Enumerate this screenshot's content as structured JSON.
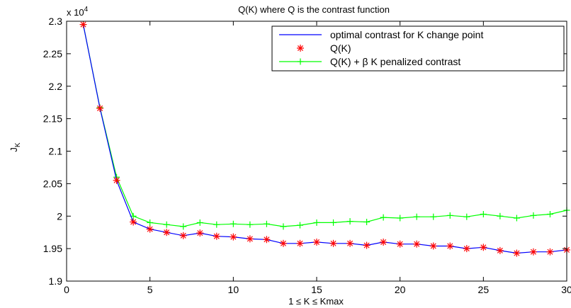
{
  "chart_data": {
    "type": "line",
    "title": "Q(K) where Q is the contrast function",
    "xlabel": "1 ≤ K ≤ Kmax",
    "ylabel": "J",
    "ylabel_sub": "K",
    "exponent_label": "x 10",
    "exponent_power": "4",
    "xlim": [
      0,
      30
    ],
    "ylim": [
      1.9,
      2.3
    ],
    "xticks": [
      "0",
      "5",
      "10",
      "15",
      "20",
      "25",
      "30"
    ],
    "yticks": [
      "1.9",
      "1.95",
      "2",
      "2.05",
      "2.1",
      "2.15",
      "2.2",
      "2.25",
      "2.3"
    ],
    "legend_position": "top-right",
    "x": [
      1,
      2,
      3,
      4,
      5,
      6,
      7,
      8,
      9,
      10,
      11,
      12,
      13,
      14,
      15,
      16,
      17,
      18,
      19,
      20,
      21,
      22,
      23,
      24,
      25,
      26,
      27,
      28,
      29,
      30
    ],
    "series": [
      {
        "name": "optimal contrast for K change point",
        "style": "line",
        "color": "#0000ff",
        "values": [
          2.295,
          2.166,
          2.055,
          1.991,
          1.98,
          1.975,
          1.97,
          1.974,
          1.969,
          1.968,
          1.965,
          1.964,
          1.958,
          1.958,
          1.96,
          1.958,
          1.958,
          1.955,
          1.96,
          1.957,
          1.957,
          1.954,
          1.954,
          1.95,
          1.952,
          1.947,
          1.943,
          1.945,
          1.945,
          1.948
        ]
      },
      {
        "name": "Q(K)",
        "style": "marker-star",
        "color": "#ff0000",
        "values": [
          2.295,
          2.166,
          2.055,
          1.991,
          1.98,
          1.975,
          1.97,
          1.974,
          1.969,
          1.968,
          1.965,
          1.964,
          1.958,
          1.958,
          1.96,
          1.958,
          1.958,
          1.955,
          1.96,
          1.957,
          1.957,
          1.954,
          1.954,
          1.95,
          1.952,
          1.947,
          1.943,
          1.945,
          1.945,
          1.948
        ]
      },
      {
        "name": "Q(K) + β K penalized contrast",
        "style": "line-plus",
        "color": "#00ff00",
        "values": [
          2.295,
          2.167,
          2.06,
          2.0,
          1.99,
          1.987,
          1.984,
          1.99,
          1.987,
          1.988,
          1.987,
          1.988,
          1.984,
          1.986,
          1.99,
          1.99,
          1.992,
          1.991,
          1.998,
          1.997,
          1.999,
          1.999,
          2.001,
          1.999,
          2.003,
          2.0,
          1.997,
          2.001,
          2.003,
          2.009
        ]
      }
    ]
  }
}
